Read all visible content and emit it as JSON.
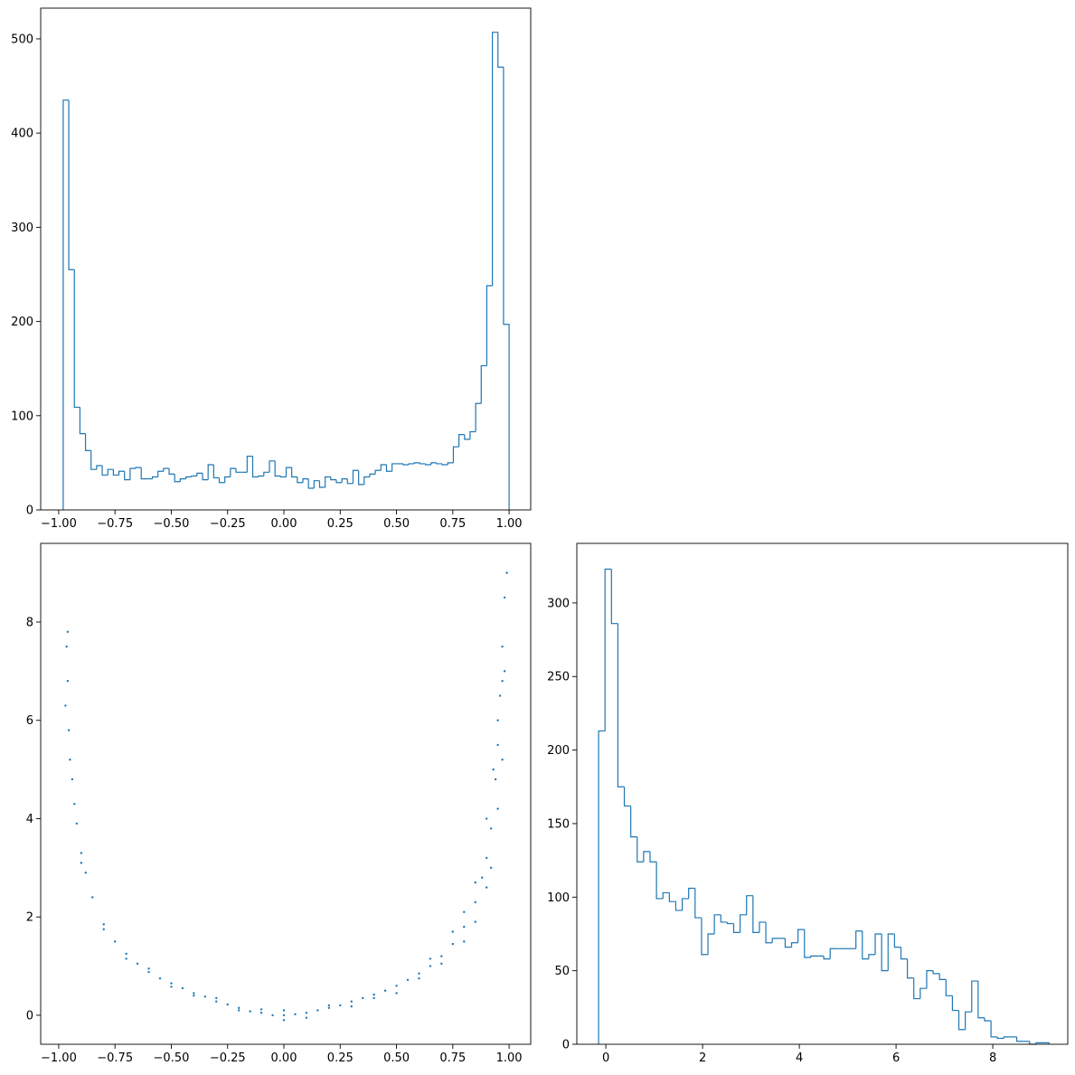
{
  "chart_data": [
    {
      "type": "histogram",
      "color": "#1f77b4",
      "bins": [
        -0.98,
        -0.95525,
        -0.9305,
        -0.90575,
        -0.881,
        -0.85625,
        -0.8315,
        -0.80675,
        -0.782,
        -0.75725,
        -0.7325,
        -0.70775,
        -0.683,
        -0.65825,
        -0.6335,
        -0.60875,
        -0.584,
        -0.55925,
        -0.5345,
        -0.50975,
        -0.485,
        -0.46025,
        -0.4355,
        -0.41075,
        -0.386,
        -0.36125,
        -0.3365,
        -0.31175,
        -0.287,
        -0.26225,
        -0.2375,
        -0.21275,
        -0.188,
        -0.16325,
        -0.1385,
        -0.11375,
        -0.089,
        -0.06425,
        -0.0395,
        -0.01475,
        0.01,
        0.03475,
        0.0595,
        0.08425,
        0.109,
        0.13375,
        0.1585,
        0.18325,
        0.208,
        0.23275,
        0.2575,
        0.28225,
        0.307,
        0.33175,
        0.3565,
        0.38125,
        0.406,
        0.43075,
        0.4555,
        0.48025,
        0.505,
        0.52975,
        0.5545,
        0.57925,
        0.604,
        0.62875,
        0.6535,
        0.67825,
        0.703,
        0.72775,
        0.7525,
        0.77725,
        0.802,
        0.82675,
        0.8515,
        0.87625,
        0.901,
        0.92575,
        0.9505,
        0.97525,
        1.0
      ],
      "values": [
        435,
        255,
        109,
        81,
        63,
        43,
        47,
        37,
        43,
        37,
        41,
        32,
        44,
        45,
        33,
        33,
        35,
        41,
        44,
        38,
        30,
        33,
        35,
        36,
        39,
        32,
        48,
        34,
        29,
        35,
        44,
        40,
        40,
        57,
        35,
        36,
        40,
        52,
        36,
        35,
        45,
        35,
        29,
        33,
        23,
        31,
        24,
        35,
        32,
        29,
        33,
        28,
        42,
        27,
        35,
        38,
        42,
        48,
        41,
        49,
        49,
        48,
        49,
        50,
        49,
        48,
        50,
        49,
        48,
        50,
        67,
        80,
        75,
        83,
        113,
        153,
        238,
        507,
        470,
        197
      ],
      "xlim": [
        -1.08,
        1.096
      ],
      "ylim": [
        0,
        532.6
      ],
      "xticks": [
        {
          "value": -1.0,
          "label": "−1.00"
        },
        {
          "value": -0.75,
          "label": "−0.75"
        },
        {
          "value": -0.5,
          "label": "−0.50"
        },
        {
          "value": -0.25,
          "label": "−0.25"
        },
        {
          "value": 0,
          "label": "0.00"
        },
        {
          "value": 0.25,
          "label": "0.25"
        },
        {
          "value": 0.5,
          "label": "0.50"
        },
        {
          "value": 0.75,
          "label": "0.75"
        },
        {
          "value": 1.0,
          "label": "1.00"
        }
      ],
      "yticks": [
        0,
        100,
        200,
        300,
        400,
        500
      ]
    },
    {
      "type": "scatter",
      "color": "#1f77b4",
      "x": [
        0,
        0.05,
        -0.05,
        0.1,
        -0.1,
        0.15,
        -0.15,
        0.2,
        -0.2,
        0.25,
        -0.25,
        0.3,
        -0.3,
        0.35,
        -0.35,
        0.4,
        -0.4,
        0.45,
        -0.45,
        0.5,
        -0.5,
        0.55,
        -0.55,
        0.6,
        -0.6,
        0.65,
        -0.65,
        0.7,
        -0.7,
        0.75,
        -0.75,
        0.8,
        -0.8,
        0.85,
        -0.85,
        0.88,
        -0.88,
        0.9,
        -0.9,
        0.92,
        -0.92,
        0.94,
        -0.94,
        0.95,
        -0.955,
        0.96,
        -0.96,
        0.97,
        -0.965,
        0.98,
        0.99,
        0,
        0,
        0.1,
        -0.1,
        0.3,
        -0.3,
        0.5,
        -0.5,
        0.7,
        -0.7,
        0.75,
        0.8,
        0.8,
        0.85,
        0.85,
        0.9,
        0.9,
        0.92,
        0.93,
        0.95,
        0.95,
        0.97,
        0.97,
        0.98,
        -0.6,
        -0.8,
        -0.9,
        -0.93,
        -0.95,
        -0.97,
        -0.96,
        0.6,
        0.65,
        0.4,
        -0.4,
        0.2,
        -0.2
      ],
      "y": [
        0,
        0.02,
        0,
        0.05,
        0.05,
        0.1,
        0.08,
        0.15,
        0.15,
        0.2,
        0.22,
        0.28,
        0.28,
        0.35,
        0.38,
        0.42,
        0.45,
        0.5,
        0.55,
        0.6,
        0.65,
        0.72,
        0.75,
        0.85,
        0.88,
        1.0,
        1.05,
        1.2,
        1.25,
        1.45,
        1.5,
        1.8,
        1.85,
        2.3,
        2.4,
        2.8,
        2.9,
        3.2,
        3.3,
        3.8,
        3.9,
        4.8,
        4.8,
        5.5,
        5.8,
        6.5,
        6.8,
        7.5,
        7.5,
        8.5,
        9.0,
        0.1,
        -0.1,
        -0.05,
        0.12,
        0.18,
        0.35,
        0.45,
        0.58,
        1.05,
        1.15,
        1.7,
        1.5,
        2.1,
        1.9,
        2.7,
        2.6,
        4.0,
        3.0,
        5.0,
        4.2,
        6.0,
        5.2,
        6.8,
        7.0,
        0.95,
        1.75,
        3.1,
        4.3,
        5.2,
        6.3,
        7.8,
        0.75,
        1.15,
        0.35,
        0.4,
        0.2,
        0.1
      ],
      "xlim": [
        -1.08,
        1.096
      ],
      "ylim": [
        -0.59,
        9.6
      ],
      "xticks": [
        {
          "value": -1.0,
          "label": "−1.00"
        },
        {
          "value": -0.75,
          "label": "−0.75"
        },
        {
          "value": -0.5,
          "label": "−0.50"
        },
        {
          "value": -0.25,
          "label": "−0.25"
        },
        {
          "value": 0,
          "label": "0.00"
        },
        {
          "value": 0.25,
          "label": "0.25"
        },
        {
          "value": 0.5,
          "label": "0.50"
        },
        {
          "value": 0.75,
          "label": "0.75"
        },
        {
          "value": 1.0,
          "label": "1.00"
        }
      ],
      "yticks": [
        0,
        2,
        4,
        6,
        8
      ]
    },
    {
      "type": "histogram",
      "color": "#1f77b4",
      "bins": [
        -0.15,
        -0.017,
        0.116,
        0.249,
        0.382,
        0.515,
        0.648,
        0.781,
        0.914,
        1.047,
        1.18,
        1.313,
        1.446,
        1.579,
        1.712,
        1.845,
        1.978,
        2.111,
        2.244,
        2.377,
        2.51,
        2.643,
        2.776,
        2.909,
        3.042,
        3.175,
        3.308,
        3.441,
        3.574,
        3.707,
        3.84,
        3.973,
        4.106,
        4.239,
        4.372,
        4.505,
        4.638,
        4.771,
        4.904,
        5.037,
        5.17,
        5.303,
        5.436,
        5.569,
        5.702,
        5.835,
        5.968,
        6.101,
        6.234,
        6.367,
        6.5,
        6.633,
        6.766,
        6.899,
        7.032,
        7.165,
        7.298,
        7.431,
        7.564,
        7.697,
        7.83,
        7.963,
        8.096,
        8.229,
        8.362,
        8.495,
        8.628,
        8.761,
        8.894,
        9.027,
        9.16
      ],
      "values": [
        213,
        323,
        286,
        175,
        162,
        141,
        124,
        131,
        124,
        99,
        103,
        97,
        91,
        99,
        106,
        86,
        61,
        75,
        88,
        83,
        82,
        76,
        88,
        101,
        76,
        83,
        69,
        72,
        72,
        66,
        69,
        78,
        59,
        60,
        60,
        58,
        65,
        65,
        65,
        65,
        77,
        58,
        61,
        75,
        50,
        75,
        66,
        58,
        45,
        31,
        38,
        50,
        48,
        44,
        33,
        23,
        10,
        22,
        43,
        18,
        16,
        5,
        4,
        5,
        5,
        2,
        2,
        0,
        1,
        1
      ],
      "xlim": [
        -0.6,
        9.55
      ],
      "ylim": [
        0,
        340.5
      ],
      "xticks": [
        0,
        2,
        4,
        6,
        8
      ],
      "yticks": [
        0,
        50,
        100,
        150,
        200,
        250,
        300
      ]
    }
  ]
}
